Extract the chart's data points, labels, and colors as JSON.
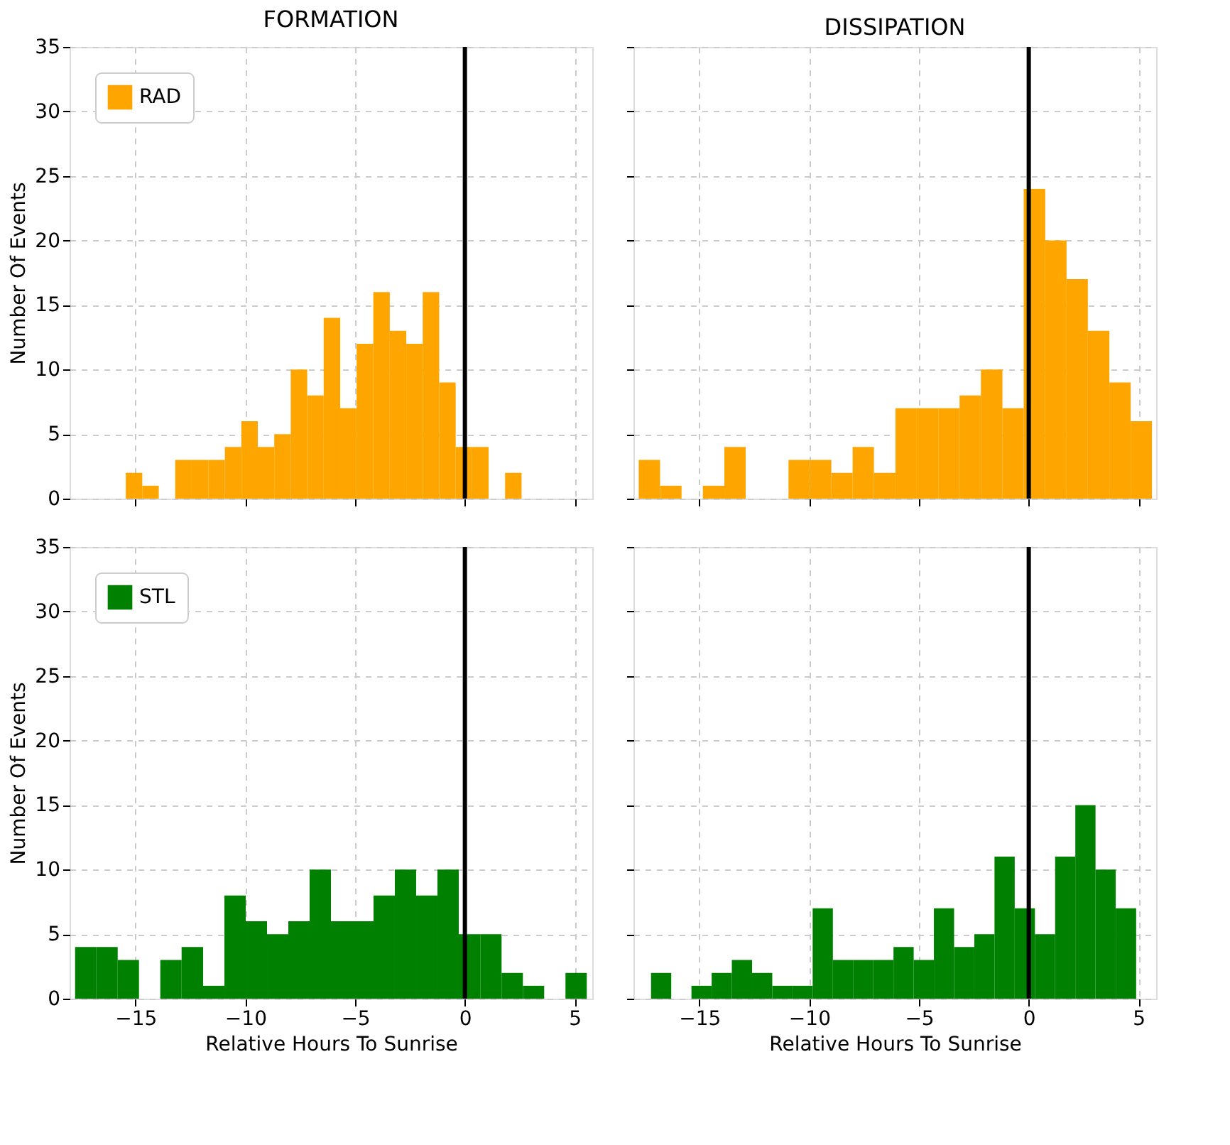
{
  "chart_data": [
    {
      "type": "histogram",
      "title": "FORMATION",
      "ylabel": "Number Of Events",
      "tick_labels": "y",
      "legend": "top left",
      "grid": true,
      "xlim": [
        -18,
        5.8
      ],
      "ylim": [
        0,
        35
      ],
      "xticks": [
        -15,
        -10,
        -5,
        0,
        5
      ],
      "yticks": [
        0,
        5,
        10,
        15,
        20,
        25,
        30,
        35
      ],
      "ref_lines": [
        {
          "axis": "x",
          "value": 0,
          "color": "#000000"
        }
      ],
      "bins": [
        -15.44,
        -14.69,
        -13.94,
        -13.19,
        -12.44,
        -11.68,
        -10.93,
        -10.18,
        -9.43,
        -8.68,
        -7.93,
        -7.18,
        -6.43,
        -5.68,
        -4.93,
        -4.17,
        -3.42,
        -2.67,
        -1.92,
        -1.17,
        -0.42,
        0.33,
        1.08,
        1.83,
        2.58
      ],
      "series": [
        {
          "name": "RAD",
          "color": "#ffa500",
          "values": [
            2,
            1,
            0,
            3,
            3,
            3,
            4,
            6,
            4,
            5,
            10,
            8,
            14,
            7,
            12,
            16,
            13,
            12,
            16,
            9,
            4,
            4,
            0,
            2
          ]
        }
      ]
    },
    {
      "type": "histogram",
      "title": "DISSIPATION",
      "tick_labels": false,
      "legend": "top left",
      "grid": true,
      "xlim": [
        -18,
        5.8
      ],
      "ylim": [
        0,
        35
      ],
      "xticks": [
        -15,
        -10,
        -5,
        0,
        5
      ],
      "yticks": [
        0,
        5,
        10,
        15,
        20,
        25,
        30,
        35
      ],
      "ref_lines": [
        {
          "axis": "x",
          "value": 0,
          "color": "#000000"
        }
      ],
      "bins": [
        -17.76,
        -16.79,
        -15.81,
        -14.84,
        -13.86,
        -12.89,
        -11.92,
        -10.94,
        -9.97,
        -8.99,
        -8.02,
        -7.05,
        -6.07,
        -5.1,
        -4.12,
        -3.15,
        -2.18,
        -1.2,
        -0.23,
        0.75,
        1.72,
        2.69,
        3.67,
        4.64,
        5.61
      ],
      "series": [
        {
          "name": "RAD",
          "color": "#ffa500",
          "values": [
            3,
            1,
            0,
            1,
            4,
            0,
            0,
            3,
            3,
            2,
            4,
            2,
            7,
            7,
            7,
            8,
            10,
            7,
            24,
            20,
            17,
            13,
            9,
            6
          ]
        }
      ]
    },
    {
      "type": "histogram",
      "xlabel": "Relative Hours To Sunrise",
      "ylabel": "Number Of Events",
      "legend": "top left",
      "grid": true,
      "xlim": [
        -18,
        5.8
      ],
      "ylim": [
        0,
        35
      ],
      "xticks": [
        -15,
        -10,
        -5,
        0,
        5
      ],
      "yticks": [
        0,
        5,
        10,
        15,
        20,
        25,
        30,
        35
      ],
      "ref_lines": [
        {
          "axis": "x",
          "value": 0,
          "color": "#000000"
        }
      ],
      "bins": [
        -17.75,
        -16.78,
        -15.81,
        -14.84,
        -13.87,
        -12.9,
        -11.92,
        -10.95,
        -9.98,
        -9.01,
        -8.04,
        -7.07,
        -6.1,
        -5.13,
        -4.16,
        -3.19,
        -2.22,
        -1.25,
        -0.28,
        0.7,
        1.67,
        2.64,
        3.61,
        4.58,
        5.55
      ],
      "series": [
        {
          "name": "STL",
          "color": "#008000",
          "values": [
            4,
            4,
            3,
            0,
            3,
            4,
            1,
            8,
            6,
            5,
            6,
            10,
            6,
            6,
            8,
            10,
            8,
            10,
            5,
            5,
            2,
            1,
            0,
            2
          ]
        }
      ]
    },
    {
      "type": "histogram",
      "xlabel": "Relative Hours To Sunrise",
      "tick_labels": "x",
      "legend": "top left",
      "grid": true,
      "xlim": [
        -18,
        5.8
      ],
      "ylim": [
        0,
        35
      ],
      "xticks": [
        -15,
        -10,
        -5,
        0,
        5
      ],
      "yticks": [
        0,
        5,
        10,
        15,
        20,
        25,
        30,
        35
      ],
      "ref_lines": [
        {
          "axis": "x",
          "value": 0,
          "color": "#000000"
        }
      ],
      "bins": [
        -17.2,
        -16.28,
        -15.36,
        -14.44,
        -13.52,
        -12.6,
        -11.68,
        -10.76,
        -9.84,
        -8.92,
        -8.0,
        -7.08,
        -6.16,
        -5.24,
        -4.32,
        -3.4,
        -2.48,
        -1.56,
        -0.64,
        0.28,
        1.2,
        2.12,
        3.04,
        3.96,
        4.89
      ],
      "series": [
        {
          "name": "STL",
          "color": "#008000",
          "values": [
            2,
            0,
            1,
            2,
            3,
            2,
            1,
            1,
            7,
            3,
            3,
            3,
            4,
            3,
            7,
            4,
            5,
            11,
            7,
            5,
            11,
            15,
            10,
            7
          ]
        }
      ]
    }
  ]
}
